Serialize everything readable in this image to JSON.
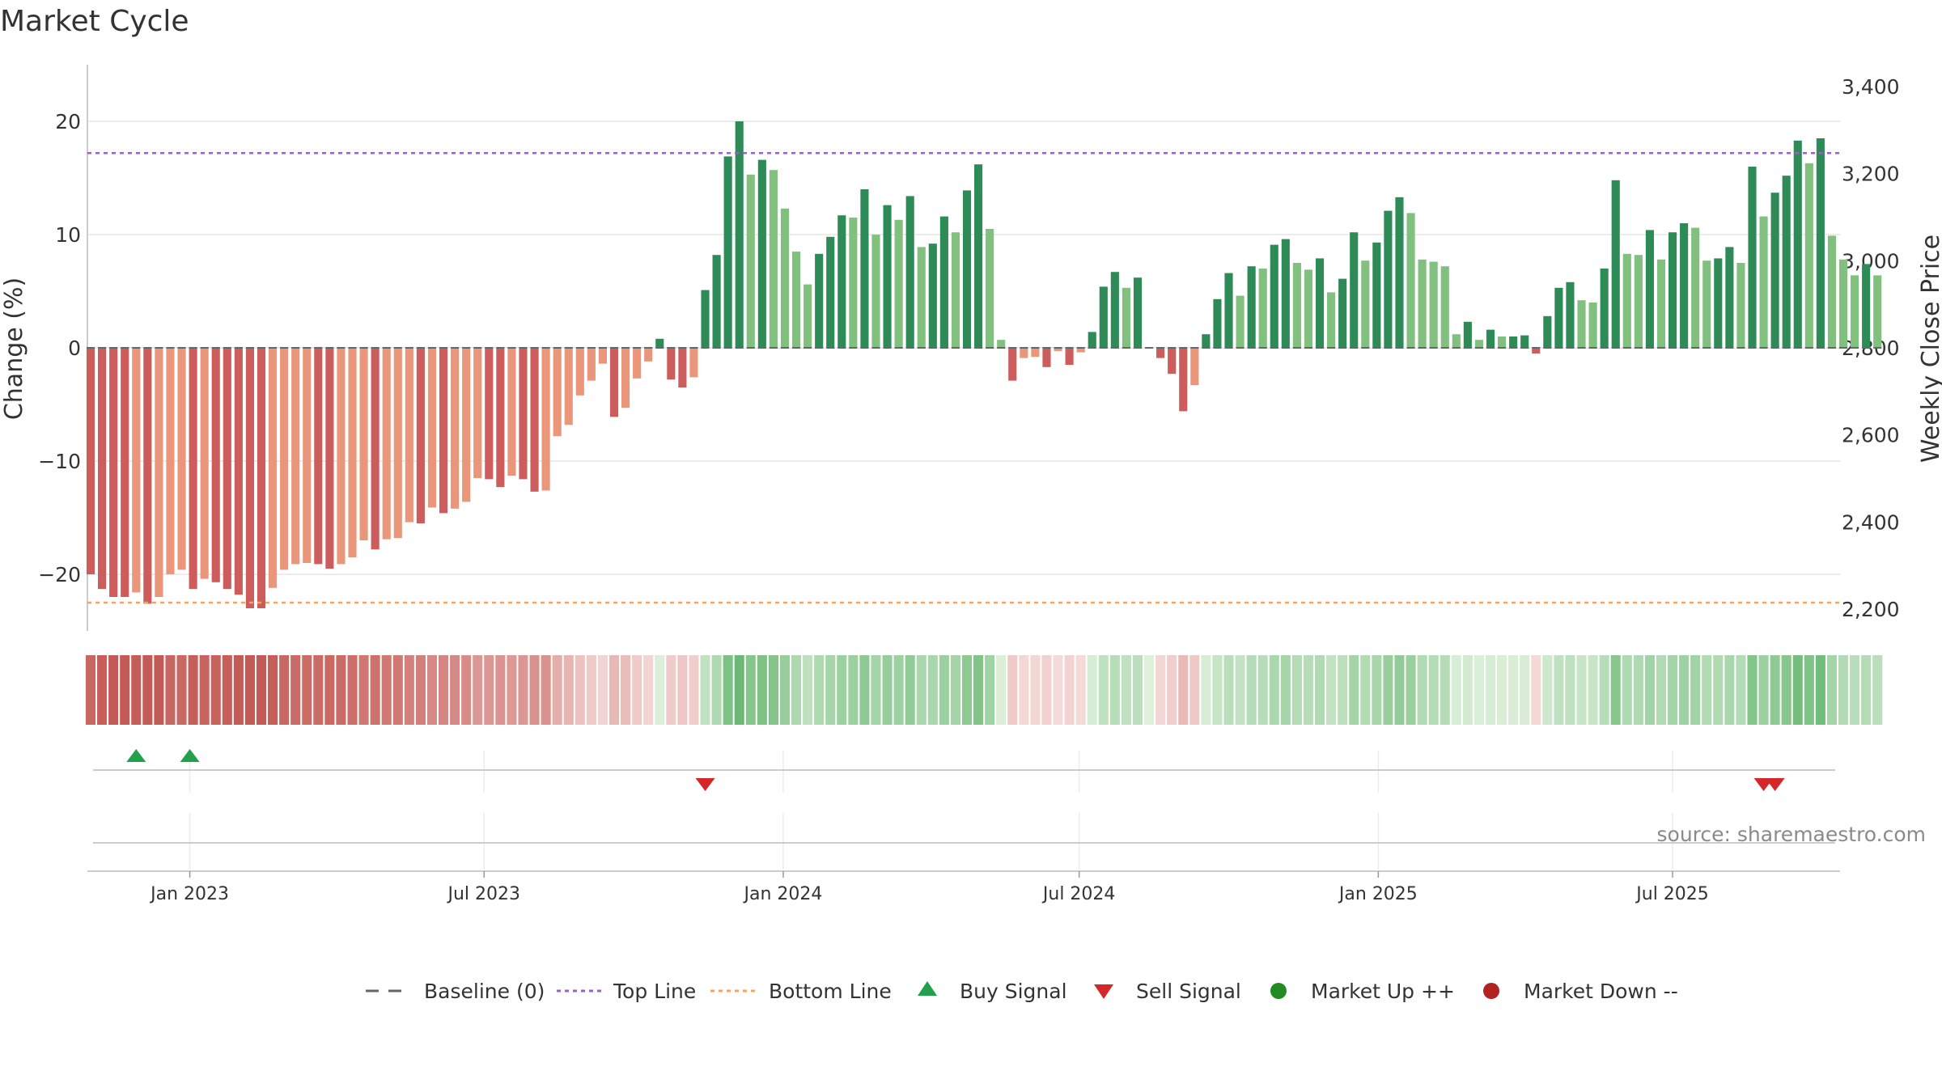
{
  "chart_data": {
    "type": "bar",
    "title": "Market Cycle",
    "ylabel_left": "Change (%)",
    "ylabel_right": "Weekly Close Price",
    "ylim": [
      -25,
      25
    ],
    "right_ylim": [
      2150,
      3450
    ],
    "y_ticks": [
      {
        "value": 20,
        "label": "20"
      },
      {
        "value": 10,
        "label": "10"
      },
      {
        "value": 0,
        "label": "0"
      },
      {
        "value": -10,
        "label": "−10"
      },
      {
        "value": -20,
        "label": "−20"
      }
    ],
    "right_ticks": [
      {
        "value": 3400,
        "label": "3,400"
      },
      {
        "value": 3200,
        "label": "3,200"
      },
      {
        "value": 3000,
        "label": "3,000"
      },
      {
        "value": 2800,
        "label": "2,800"
      },
      {
        "value": 2600,
        "label": "2,600"
      },
      {
        "value": 2400,
        "label": "2,400"
      },
      {
        "value": 2200,
        "label": "2,200"
      }
    ],
    "x_start": "2022-10-30",
    "x_end": "2025-10-12",
    "x_ticks": [
      {
        "date": "2023-01-01",
        "label": "Jan 2023"
      },
      {
        "date": "2023-07-01",
        "label": "Jul 2023"
      },
      {
        "date": "2024-01-01",
        "label": "Jan 2024"
      },
      {
        "date": "2024-07-01",
        "label": "Jul 2024"
      },
      {
        "date": "2025-01-01",
        "label": "Jan 2025"
      },
      {
        "date": "2025-07-01",
        "label": "Jul 2025"
      }
    ],
    "first_week": "2022-11-01",
    "week_values": [
      -20,
      -21.3,
      -22,
      -22,
      -21.6,
      -22.6,
      -22,
      -20,
      -19.6,
      -21.3,
      -20.4,
      -20.7,
      -21.3,
      -21.8,
      -23,
      -23,
      -21.2,
      -19.6,
      -19.1,
      -19,
      -19.1,
      -19.5,
      -19.1,
      -18.5,
      -17,
      -17.8,
      -16.9,
      -16.8,
      -15.4,
      -15.5,
      -14.1,
      -14.6,
      -14.2,
      -13.6,
      -11.5,
      -11.6,
      -12.3,
      -11.3,
      -11.6,
      -12.7,
      -12.6,
      -7.8,
      -6.8,
      -4.2,
      -2.9,
      -1.4,
      -6.1,
      -5.3,
      -2.7,
      -1.2,
      0.8,
      -2.8,
      -3.5,
      -2.6,
      5.1,
      8.2,
      16.9,
      20,
      15.3,
      16.6,
      15.7,
      12.3,
      8.5,
      5.6,
      8.3,
      9.8,
      11.7,
      11.5,
      14,
      10,
      12.6,
      11.3,
      13.4,
      8.9,
      9.2,
      11.6,
      10.2,
      13.9,
      16.2,
      10.5,
      0.7,
      -2.9,
      -0.9,
      -0.8,
      -1.7,
      -0.3,
      -1.5,
      -0.4,
      1.4,
      5.4,
      6.7,
      5.3,
      6.2,
      0,
      -0.9,
      -2.3,
      -5.6,
      -3.3,
      1.2,
      4.3,
      6.6,
      4.6,
      7.2,
      7,
      9.1,
      9.6,
      7.5,
      6.9,
      7.9,
      4.9,
      6.1,
      10.2,
      7.7,
      9.3,
      12.1,
      13.3,
      11.9,
      7.8,
      7.6,
      7.2,
      1.2,
      2.3,
      0.7,
      1.6,
      1,
      1,
      1.1,
      -0.5,
      2.8,
      5.3,
      5.8,
      4.2,
      4,
      7,
      14.8,
      8.3,
      8.2,
      10.4,
      7.8,
      10.2,
      11,
      10.6,
      7.7,
      7.9,
      8.9,
      7.5,
      16,
      11.6,
      13.7,
      15.2,
      18.3,
      16.3,
      18.5,
      9.9,
      7.8,
      6.4,
      7.4,
      6.4
    ],
    "top_line": 17.2,
    "bottom_line": -22.5,
    "buy_signals": [
      "2022-11-29",
      "2023-01-01"
    ],
    "sell_signals": [
      "2023-11-14",
      "2025-08-26",
      "2025-09-02"
    ],
    "legend": [
      {
        "key": "baseline",
        "label": "Baseline (0)"
      },
      {
        "key": "top",
        "label": "Top Line"
      },
      {
        "key": "bottom",
        "label": "Bottom Line"
      },
      {
        "key": "buy",
        "label": "Buy Signal"
      },
      {
        "key": "sell",
        "label": "Sell Signal"
      },
      {
        "key": "up",
        "label": "Market Up ++"
      },
      {
        "key": "down",
        "label": "Market Down --"
      }
    ],
    "source": "source: sharemaestro.com",
    "colors": {
      "pos_strong": "#2e8b57",
      "pos_weak": "#82c07f",
      "neg_strong": "#cd5c5c",
      "neg_weak": "#e9967a",
      "top_line": "#9467bd",
      "bottom_line": "#f4a460",
      "baseline": "#666666",
      "buy": "#22a04b",
      "sell": "#d62728",
      "market_up": "#228b22",
      "market_down": "#b22222",
      "grid": "#e6e6e6"
    }
  }
}
